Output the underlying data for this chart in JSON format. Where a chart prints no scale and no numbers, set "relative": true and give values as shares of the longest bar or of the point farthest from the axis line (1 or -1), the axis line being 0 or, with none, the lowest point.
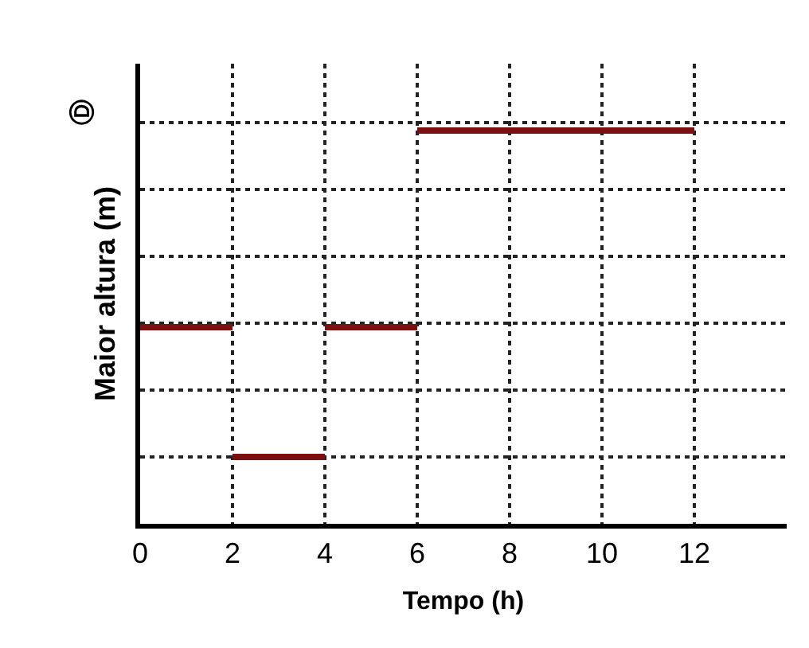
{
  "chart_data": {
    "type": "line",
    "relative": true,
    "xlabel": "Tempo (h)",
    "ylabel": "Maior altura (m)",
    "annotations": [
      "Ⓓ"
    ],
    "xlim": [
      0,
      14
    ],
    "xticks": [
      0,
      2,
      4,
      6,
      8,
      10,
      12
    ],
    "grid": true,
    "marker": "none",
    "line_style": "solid",
    "series": [
      {
        "color": "#7a1010",
        "x": [
          0,
          2,
          null,
          2,
          4,
          null,
          4,
          6,
          null,
          6,
          12
        ],
        "values": [
          0.5,
          0.5,
          null,
          0.17,
          0.17,
          null,
          0.5,
          0.5,
          null,
          1,
          1
        ]
      }
    ]
  }
}
